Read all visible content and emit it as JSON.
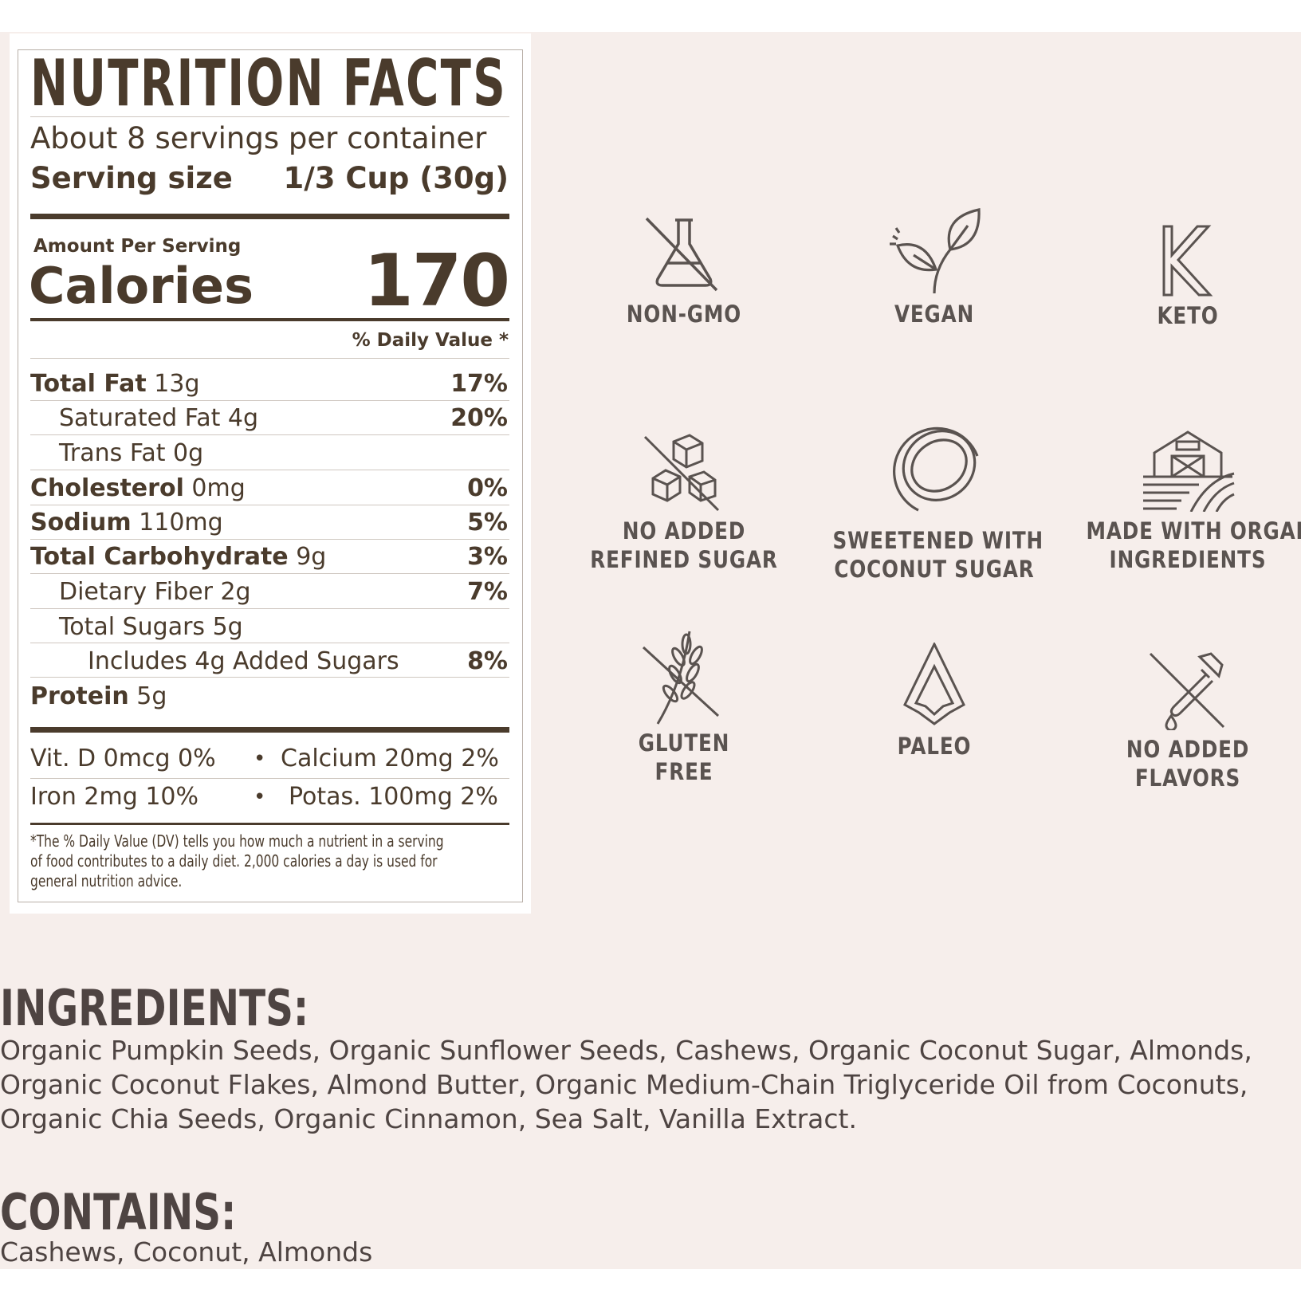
{
  "nutrition": {
    "title": "NUTRITION FACTS",
    "servings": "About 8 servings per container",
    "serving_size_label": "Serving size",
    "serving_size_value": "1/3 Cup (30g)",
    "amount_label": "Amount Per Serving",
    "calories_label": "Calories",
    "calories_value": "170",
    "dv_header": "% Daily Value *",
    "rows": [
      {
        "name": "Total Fat",
        "amount": "13g",
        "dv": "17%"
      },
      {
        "name": "Saturated Fat 4g",
        "amount": "",
        "dv": "20%"
      },
      {
        "name": "Trans Fat 0g",
        "amount": "",
        "dv": ""
      },
      {
        "name": "Cholesterol",
        "amount": "0mg",
        "dv": "0%"
      },
      {
        "name": "Sodium",
        "amount": "110mg",
        "dv": "5%"
      },
      {
        "name": "Total Carbohydrate",
        "amount": "9g",
        "dv": "3%"
      },
      {
        "name": "Dietary Fiber 2g",
        "amount": "",
        "dv": "7%"
      },
      {
        "name": "Total Sugars 5g",
        "amount": "",
        "dv": ""
      },
      {
        "name": "Includes 4g Added Sugars",
        "amount": "",
        "dv": "8%"
      },
      {
        "name": "Protein",
        "amount": "5g",
        "dv": ""
      }
    ],
    "vitamins": {
      "vit_d": "Vit. D 0mcg 0%",
      "calcium": "Calcium 20mg 2%",
      "iron": "Iron 2mg 10%",
      "potassium": "Potas. 100mg 2%",
      "bullet": "•"
    },
    "footnote": "*The % Daily Value (DV) tells you how much a nutrient in a serving of food contributes to a daily diet. 2,000 calories a day is used for general nutrition advice."
  },
  "badges": [
    {
      "icon": "non-gmo-flask-icon",
      "lines": [
        "NON-GMO"
      ]
    },
    {
      "icon": "vegan-leaf-icon",
      "lines": [
        "VEGAN"
      ]
    },
    {
      "icon": "keto-k-icon",
      "lines": [
        "KETO"
      ]
    },
    {
      "icon": "no-sugar-cubes-icon",
      "lines": [
        "NO ADDED",
        "REFINED SUGAR"
      ]
    },
    {
      "icon": "coconut-icon",
      "lines": [
        "SWEETENED WITH",
        "COCONUT SUGAR"
      ]
    },
    {
      "icon": "barn-farm-icon",
      "lines": [
        "MADE WITH ORGANIC",
        "INGREDIENTS"
      ]
    },
    {
      "icon": "gluten-free-wheat-icon",
      "lines": [
        "GLUTEN",
        "FREE"
      ]
    },
    {
      "icon": "paleo-arrowhead-icon",
      "lines": [
        "PALEO"
      ]
    },
    {
      "icon": "no-flavors-dropper-icon",
      "lines": [
        "NO ADDED",
        "FLAVORS"
      ]
    }
  ],
  "ingredients": {
    "title": "INGREDIENTS:",
    "lines": [
      "Organic Pumpkin Seeds, Organic Sunflower Seeds, Cashews, Organic Coconut Sugar, Almonds,",
      "Organic Coconut Flakes, Almond Butter, Organic Medium-Chain Triglyceride Oil from Coconuts,",
      "Organic Chia Seeds, Organic Cinnamon, Sea Salt, Vanilla Extract."
    ]
  },
  "contains": {
    "title": "CONTAINS:",
    "text": "Cashews, Coconut, Almonds"
  },
  "colors": {
    "panel_bg": "#f6eeeb",
    "label_brown": "#4a3b2c",
    "icon_gray": "#5a5350"
  }
}
